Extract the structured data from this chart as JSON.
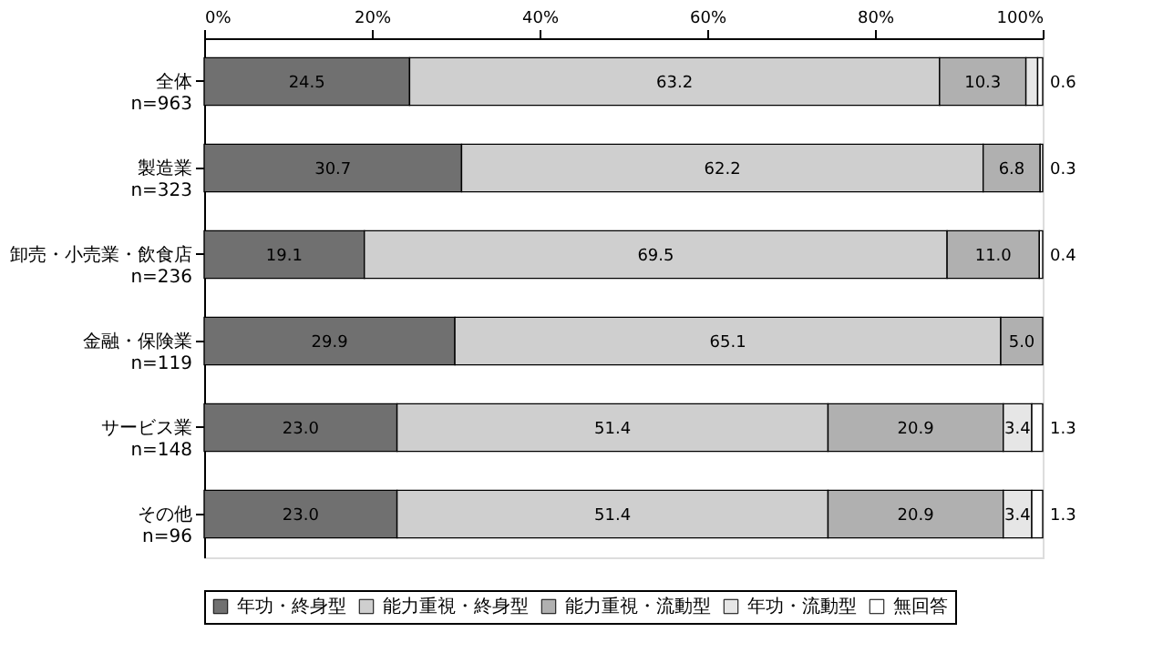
{
  "chart_data": {
    "type": "bar",
    "orientation": "horizontal",
    "stacked": true,
    "categories": [
      "全体\nn=963",
      "製造業\nn=323",
      "卸売・小売業・飲食店\nn=236",
      "金融・保険業\nn=119",
      "サービス業\nn=148",
      "その他\nn=96"
    ],
    "series": [
      {
        "name": "年功・終身型",
        "color": "#707070",
        "values": [
          24.5,
          30.7,
          19.1,
          29.9,
          23.0,
          23.0
        ],
        "value_labels": [
          "24.5",
          "30.7",
          "19.1",
          "29.9",
          "23.0",
          "23.0"
        ]
      },
      {
        "name": "能力重視・終身型",
        "color": "#cfcfcf",
        "values": [
          63.2,
          62.2,
          69.5,
          65.1,
          51.4,
          51.4
        ],
        "value_labels": [
          "63.2",
          "62.2",
          "69.5",
          "65.1",
          "51.4",
          "51.4"
        ]
      },
      {
        "name": "能力重視・流動型",
        "color": "#b0b0b0",
        "values": [
          10.3,
          6.8,
          11.0,
          5.0,
          20.9,
          20.9
        ],
        "value_labels": [
          "10.3",
          "6.8",
          "11.0",
          "5.0",
          "20.9",
          "20.9"
        ]
      },
      {
        "name": "年功・流動型",
        "color": "#e6e6e6",
        "values": [
          1.4,
          null,
          null,
          null,
          3.4,
          3.4
        ],
        "value_labels": [
          null,
          null,
          null,
          null,
          "3.4",
          "3.4"
        ]
      },
      {
        "name": "無回答",
        "color": "#ffffff",
        "values": [
          0.6,
          0.3,
          0.4,
          null,
          1.3,
          1.3
        ],
        "value_labels": [
          "0.6",
          "0.3",
          "0.4",
          null,
          "1.3",
          "1.3"
        ]
      }
    ],
    "xlim": [
      0,
      100
    ],
    "xticks": [
      {
        "value": 0,
        "label": "0%"
      },
      {
        "value": 20,
        "label": "20%"
      },
      {
        "value": 40,
        "label": "40%"
      },
      {
        "value": 60,
        "label": "60%"
      },
      {
        "value": 80,
        "label": "80%"
      },
      {
        "value": 100,
        "label": "100%"
      }
    ],
    "grid": false,
    "legend": "bottom"
  }
}
